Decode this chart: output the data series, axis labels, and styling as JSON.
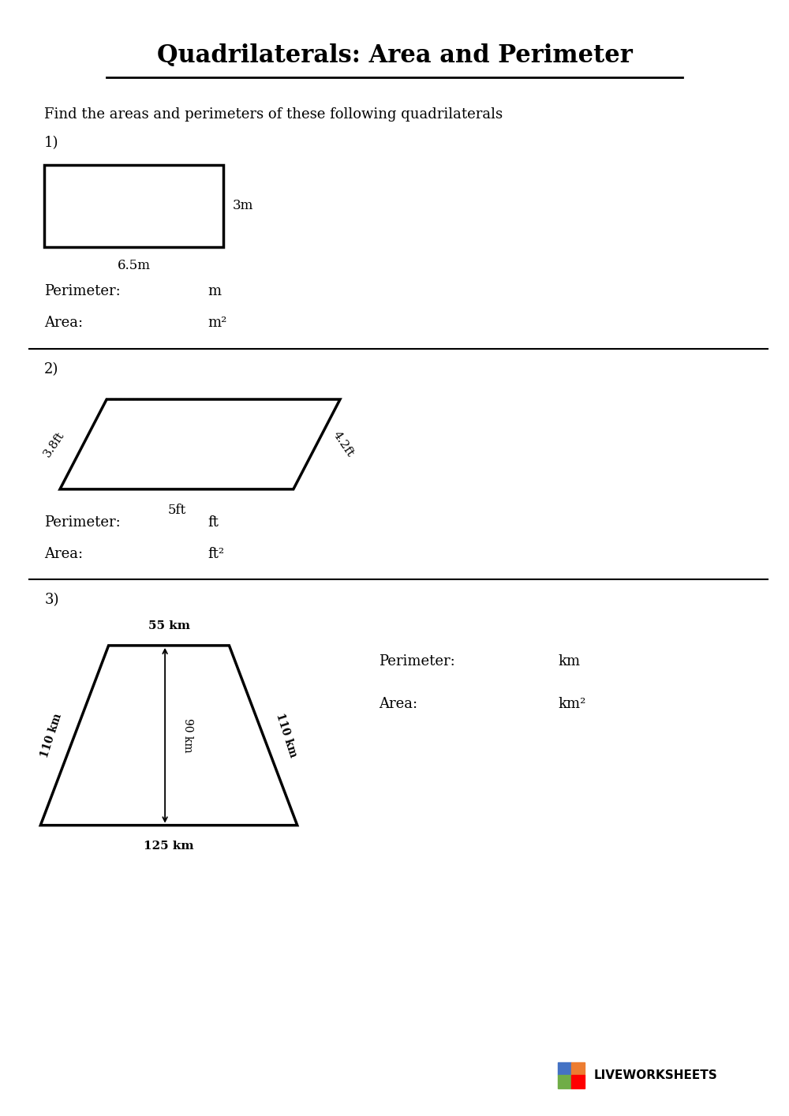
{
  "title": "Quadrilaterals: Area and Perimeter",
  "instruction": "Find the areas and perimeters of these following quadrilaterals",
  "bg_color": "#ffffff",
  "text_color": "#000000",
  "sections": [
    {
      "number": "1)",
      "shape": "rectangle",
      "label_bottom": "6.5m",
      "label_right": "3m",
      "perimeter_unit": "m",
      "area_unit": "m²"
    },
    {
      "number": "2)",
      "shape": "parallelogram",
      "label_bottom": "5ft",
      "label_left": "3.8ft",
      "label_right": "4.2ft",
      "perimeter_unit": "ft",
      "area_unit": "ft²"
    },
    {
      "number": "3)",
      "shape": "trapezoid",
      "label_top": "55 km",
      "label_bottom": "125 km",
      "label_left": "110 km",
      "label_right": "110 km",
      "label_height": "90 km",
      "perimeter_unit": "km",
      "area_unit": "km²"
    }
  ],
  "watermark": "LIVEWORKSHEETS",
  "logo_colors": [
    "#4472C4",
    "#ED7D31",
    "#70AD47",
    "#FF0000"
  ]
}
